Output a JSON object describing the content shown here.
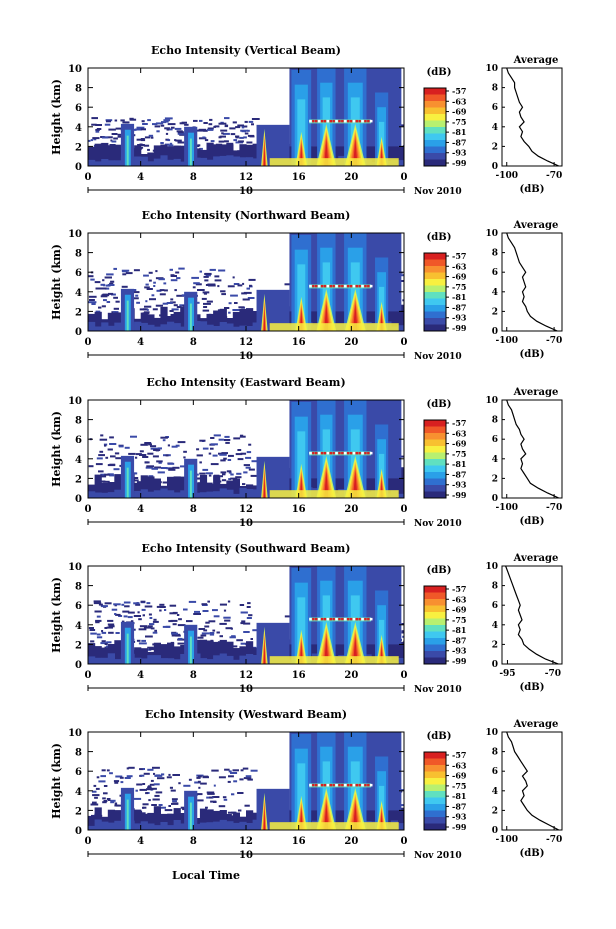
{
  "figure": {
    "xlabel": "Local Time",
    "date_label": "Nov 2010",
    "date_day": "10"
  },
  "colors": {
    "scale": [
      "#2a2a7a",
      "#3a4aa8",
      "#2f6fd0",
      "#2aa0e8",
      "#3fc8f0",
      "#60e0c0",
      "#b8f070",
      "#f8f040",
      "#f8c030",
      "#f89030",
      "#f05828",
      "#d82020"
    ]
  },
  "chart_data": [
    {
      "type": "heatmap",
      "title": "Echo Intensity (Vertical Beam)",
      "ylabel": "Height (km)",
      "x_ticks": [
        "0",
        "4",
        "8",
        "12",
        "16",
        "20",
        "0"
      ],
      "y_ticks": [
        "0",
        "2",
        "4",
        "6",
        "8",
        "10"
      ],
      "xlim": [
        0,
        24
      ],
      "ylim": [
        0,
        10
      ],
      "colorbar": {
        "label": "(dB)",
        "ticks": [
          "-57",
          "-63",
          "-69",
          "-75",
          "-81",
          "-87",
          "-93",
          "-99"
        ]
      },
      "profile": {
        "title": "Average",
        "xlabel": "(dB)",
        "x_ticks": [
          "-100",
          "-70"
        ],
        "xlim": [
          -103,
          -65
        ],
        "heights": [
          0,
          0.5,
          1,
          1.5,
          2,
          2.5,
          3,
          3.5,
          4,
          4.5,
          5,
          5.5,
          6,
          6.5,
          7,
          7.5,
          8,
          8.5,
          9,
          9.5,
          10
        ],
        "values": [
          -67,
          -74,
          -80,
          -84,
          -86,
          -89,
          -91,
          -90,
          -92,
          -89,
          -91,
          -92,
          -90,
          -92,
          -93,
          -94,
          -95,
          -95,
          -97,
          -99,
          -100
        ]
      }
    },
    {
      "type": "heatmap",
      "title": "Echo Intensity (Northward Beam)",
      "ylabel": "Height (km)",
      "x_ticks": [
        "0",
        "4",
        "8",
        "12",
        "16",
        "20",
        "0"
      ],
      "y_ticks": [
        "0",
        "2",
        "4",
        "6",
        "8",
        "10"
      ],
      "xlim": [
        0,
        24
      ],
      "ylim": [
        0,
        10
      ],
      "colorbar": {
        "label": "(dB)",
        "ticks": [
          "-57",
          "-63",
          "-69",
          "-75",
          "-81",
          "-87",
          "-93",
          "-99"
        ]
      },
      "profile": {
        "title": "Average",
        "xlabel": "(dB)",
        "x_ticks": [
          "-100",
          "-70"
        ],
        "xlim": [
          -103,
          -65
        ],
        "heights": [
          0,
          0.5,
          1,
          1.5,
          2,
          2.5,
          3,
          3.5,
          4,
          4.5,
          5,
          5.5,
          6,
          6.5,
          7,
          7.5,
          8,
          8.5,
          9,
          9.5,
          10
        ],
        "values": [
          -68,
          -75,
          -81,
          -85,
          -87,
          -88,
          -90,
          -89,
          -90,
          -88,
          -89,
          -90,
          -88,
          -90,
          -92,
          -93,
          -94,
          -95,
          -97,
          -99,
          -100
        ]
      }
    },
    {
      "type": "heatmap",
      "title": "Echo Intensity (Eastward Beam)",
      "ylabel": "Height (km)",
      "x_ticks": [
        "0",
        "4",
        "8",
        "12",
        "16",
        "20",
        "0"
      ],
      "y_ticks": [
        "0",
        "2",
        "4",
        "6",
        "8",
        "10"
      ],
      "xlim": [
        0,
        24
      ],
      "ylim": [
        0,
        10
      ],
      "colorbar": {
        "label": "(dB)",
        "ticks": [
          "-57",
          "-63",
          "-69",
          "-75",
          "-81",
          "-87",
          "-93",
          "-99"
        ]
      },
      "profile": {
        "title": "Average",
        "xlabel": "(dB)",
        "x_ticks": [
          "-100",
          "-70"
        ],
        "xlim": [
          -103,
          -65
        ],
        "heights": [
          0,
          0.5,
          1,
          1.5,
          2,
          2.5,
          3,
          3.5,
          4,
          4.5,
          5,
          5.5,
          6,
          6.5,
          7,
          7.5,
          8,
          8.5,
          9,
          9.5,
          10
        ],
        "values": [
          -67,
          -74,
          -80,
          -85,
          -87,
          -89,
          -91,
          -90,
          -91,
          -88,
          -90,
          -91,
          -89,
          -91,
          -92,
          -94,
          -95,
          -96,
          -97,
          -99,
          -100
        ]
      }
    },
    {
      "type": "heatmap",
      "title": "Echo Intensity (Southward Beam)",
      "ylabel": "Height (km)",
      "x_ticks": [
        "0",
        "4",
        "8",
        "12",
        "16",
        "20",
        "0"
      ],
      "y_ticks": [
        "0",
        "2",
        "4",
        "6",
        "8",
        "10"
      ],
      "xlim": [
        0,
        24
      ],
      "ylim": [
        0,
        10
      ],
      "colorbar": {
        "label": "(dB)",
        "ticks": [
          "-57",
          "-63",
          "-69",
          "-75",
          "-81",
          "-87",
          "-93",
          "-99"
        ]
      },
      "profile": {
        "title": "Average",
        "xlabel": "(dB)",
        "x_ticks": [
          "-95",
          "-70"
        ],
        "xlim": [
          -98,
          -65
        ],
        "heights": [
          0,
          0.5,
          1,
          1.5,
          2,
          2.5,
          3,
          3.5,
          4,
          4.5,
          5,
          5.5,
          6,
          6.5,
          7,
          7.5,
          8,
          8.5,
          9,
          9.5,
          10
        ],
        "values": [
          -67,
          -74,
          -79,
          -83,
          -86,
          -87,
          -89,
          -88,
          -89,
          -87,
          -88,
          -89,
          -88,
          -89,
          -90,
          -91,
          -92,
          -93,
          -94,
          -95,
          -96
        ]
      }
    },
    {
      "type": "heatmap",
      "title": "Echo Intensity (Westward Beam)",
      "ylabel": "Height (km)",
      "x_ticks": [
        "0",
        "4",
        "8",
        "12",
        "16",
        "20",
        "0"
      ],
      "y_ticks": [
        "0",
        "2",
        "4",
        "6",
        "8",
        "10"
      ],
      "xlim": [
        0,
        24
      ],
      "ylim": [
        0,
        10
      ],
      "colorbar": {
        "label": "(dB)",
        "ticks": [
          "-57",
          "-63",
          "-69",
          "-75",
          "-81",
          "-87",
          "-93",
          "-99"
        ]
      },
      "profile": {
        "title": "Average",
        "xlabel": "(dB)",
        "x_ticks": [
          "-100",
          "-70"
        ],
        "xlim": [
          -103,
          -65
        ],
        "heights": [
          0,
          0.5,
          1,
          1.5,
          2,
          2.5,
          3,
          3.5,
          4,
          4.5,
          5,
          5.5,
          6,
          6.5,
          7,
          7.5,
          8,
          8.5,
          9,
          9.5,
          10
        ],
        "values": [
          -67,
          -73,
          -79,
          -84,
          -87,
          -89,
          -91,
          -89,
          -90,
          -87,
          -88,
          -90,
          -87,
          -89,
          -91,
          -93,
          -95,
          -96,
          -97,
          -99,
          -100
        ]
      }
    }
  ]
}
